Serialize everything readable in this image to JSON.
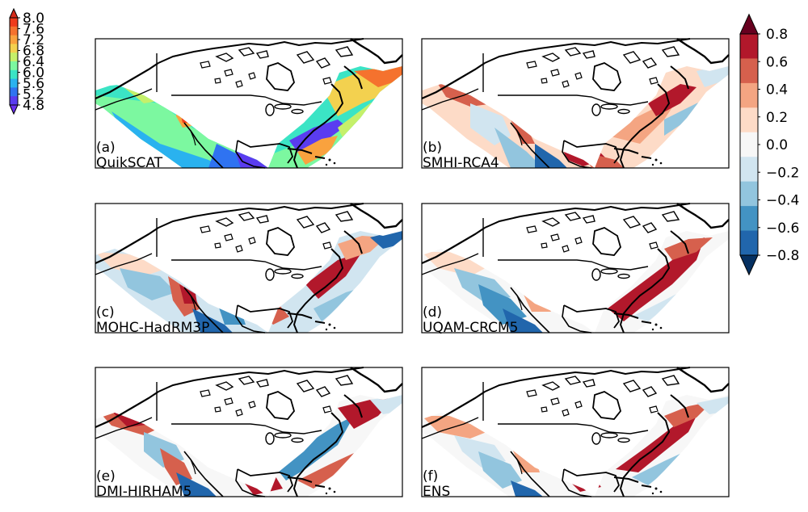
{
  "figure": {
    "panels": [
      {
        "id": "a",
        "tag": "(a)",
        "name": "QuikSCAT",
        "field": "absolute"
      },
      {
        "id": "b",
        "tag": "(b)",
        "name": "SMHI-RCA4",
        "field": "bias"
      },
      {
        "id": "c",
        "tag": "(c)",
        "name": "MOHC-HadRM3P",
        "field": "bias"
      },
      {
        "id": "d",
        "tag": "(d)",
        "name": "UQAM-CRCM5",
        "field": "bias"
      },
      {
        "id": "e",
        "tag": "(e)",
        "name": "DMI-HIRHAM5",
        "field": "bias"
      },
      {
        "id": "f",
        "tag": "(f)",
        "name": "ENS",
        "field": "bias"
      }
    ]
  },
  "colorbar_absolute": {
    "ticks": [
      "8.0",
      "7.6",
      "7.2",
      "6.8",
      "6.4",
      "6.0",
      "5.6",
      "5.2",
      "4.8"
    ],
    "extend": "both",
    "colors": [
      "#ef3b1c",
      "#f5722e",
      "#f9a23e",
      "#f3d14f",
      "#c5f06a",
      "#7cf8a0",
      "#3be4c5",
      "#2ab2ef",
      "#2f73f1",
      "#5a3cf0"
    ],
    "arrow_top": "#d62a1a",
    "arrow_bottom": "#6a2ff0"
  },
  "colorbar_bias": {
    "ticks": [
      "0.8",
      "0.6",
      "0.4",
      "0.2",
      "0.0",
      "−0.2",
      "−0.4",
      "−0.6",
      "−0.8"
    ],
    "extend": "both",
    "colors": [
      "#b2182b",
      "#d6604d",
      "#f4a582",
      "#fddbc7",
      "#f7f7f7",
      "#d1e5f0",
      "#92c5de",
      "#4393c3",
      "#2166ac"
    ],
    "arrow_top": "#67001f",
    "arrow_bottom": "#053061"
  }
}
